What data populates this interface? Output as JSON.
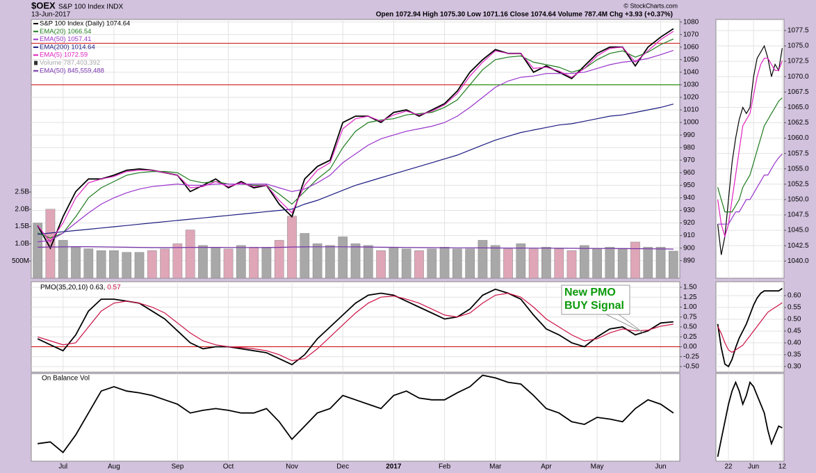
{
  "chart_data": [
    {
      "type": "line",
      "symbol": "$OEX",
      "title": "S&P 100 Index INDX",
      "date": "13-Jun-2017",
      "quote": "Open 1072.94 High 1075.30 Low 1071.16 Close 1074.64 Volume 787.4M Chg +3.93 (+0.37%)",
      "credit": "© StockCharts.com",
      "categories": [
        null,
        null,
        "Jul",
        null,
        null,
        null,
        "Aug",
        null,
        null,
        null,
        null,
        "Sep",
        null,
        null,
        null,
        "Oct",
        null,
        null,
        null,
        null,
        "Nov",
        null,
        null,
        null,
        "Dec",
        null,
        null,
        null,
        "2017",
        null,
        null,
        null,
        "Feb",
        null,
        null,
        null,
        "Mar",
        null,
        null,
        null,
        "Apr",
        null,
        null,
        null,
        "May",
        null,
        null,
        null,
        null,
        "Jun",
        null
      ],
      "series": [
        {
          "name": "S&P 100 Index (Daily) 1074.64",
          "color": "#000000",
          "values": [
            918,
            900,
            925,
            945,
            955,
            955,
            958,
            962,
            963,
            962,
            960,
            958,
            945,
            950,
            955,
            948,
            953,
            948,
            950,
            935,
            925,
            955,
            965,
            970,
            1000,
            1005,
            1005,
            1000,
            1008,
            1010,
            1005,
            1010,
            1015,
            1025,
            1040,
            1050,
            1058,
            1055,
            1055,
            1040,
            1045,
            1040,
            1035,
            1045,
            1055,
            1060,
            1060,
            1045,
            1060,
            1068,
            1074.64
          ]
        },
        {
          "name": "EMA(20) 1066.54",
          "color": "#1d7a1d",
          "values": [
            912,
            908,
            912,
            925,
            940,
            948,
            953,
            958,
            960,
            961,
            961,
            960,
            954,
            952,
            953,
            951,
            951,
            950,
            950,
            943,
            935,
            945,
            955,
            963,
            980,
            993,
            1000,
            1002,
            1003,
            1006,
            1007,
            1008,
            1012,
            1018,
            1030,
            1042,
            1050,
            1052,
            1053,
            1048,
            1046,
            1044,
            1040,
            1043,
            1050,
            1055,
            1057,
            1052,
            1056,
            1062,
            1066.54
          ]
        },
        {
          "name": "EMA(50) 1057.41",
          "color": "#9933cc",
          "values": [
            905,
            906,
            912,
            920,
            928,
            935,
            940,
            944,
            947,
            949,
            950,
            951,
            950,
            950,
            951,
            951,
            951,
            951,
            951,
            948,
            945,
            947,
            952,
            958,
            968,
            975,
            982,
            987,
            990,
            993,
            995,
            997,
            1000,
            1005,
            1012,
            1020,
            1028,
            1033,
            1036,
            1037,
            1039,
            1039,
            1039,
            1040,
            1043,
            1046,
            1048,
            1049,
            1051,
            1054,
            1057.41
          ]
        },
        {
          "name": "EMA(200) 1014.64",
          "color": "#1a1a80",
          "values": [
            911,
            912,
            913,
            914,
            915,
            916,
            917,
            918,
            919,
            920,
            921,
            922,
            923,
            924,
            925,
            926,
            927,
            928,
            929,
            930,
            931,
            935,
            938,
            942,
            946,
            950,
            953,
            956,
            959,
            962,
            965,
            968,
            971,
            974,
            978,
            982,
            986,
            989,
            992,
            994,
            996,
            998,
            999,
            1001,
            1003,
            1005,
            1006,
            1008,
            1010,
            1012,
            1014.64
          ]
        },
        {
          "name": "EMA(5) 1072.59",
          "color": "#e020c0",
          "values": [
            918,
            905,
            920,
            940,
            952,
            955,
            957,
            961,
            962,
            962,
            960,
            958,
            948,
            949,
            953,
            949,
            952,
            949,
            950,
            938,
            928,
            950,
            962,
            968,
            995,
            1003,
            1005,
            1001,
            1006,
            1009,
            1006,
            1009,
            1014,
            1023,
            1037,
            1048,
            1057,
            1055,
            1055,
            1043,
            1044,
            1041,
            1036,
            1043,
            1053,
            1059,
            1060,
            1048,
            1057,
            1066,
            1072.59
          ]
        },
        {
          "name": "Volume 787,403,392",
          "type": "bar",
          "axis": "y2",
          "color": "#a8a8a8",
          "down_color": "#dfa6b8",
          "values": [
            1600,
            2000,
            1100,
            900,
            850,
            800,
            800,
            750,
            750,
            800,
            850,
            1000,
            1400,
            950,
            900,
            850,
            950,
            900,
            900,
            1100,
            1800,
            1300,
            1000,
            950,
            1200,
            1000,
            950,
            800,
            900,
            850,
            800,
            850,
            900,
            850,
            850,
            1100,
            950,
            850,
            1000,
            850,
            900,
            850,
            800,
            950,
            850,
            900,
            850,
            1050,
            900,
            900,
            787.4
          ]
        },
        {
          "name": "EMA(50) 845,559,488",
          "axis": "y2",
          "color": "#7733aa",
          "values": [
            900,
            905,
            910,
            915,
            915,
            910,
            905,
            900,
            895,
            890,
            890,
            890,
            895,
            895,
            895,
            893,
            892,
            891,
            890,
            895,
            905,
            910,
            912,
            912,
            912,
            910,
            905,
            900,
            897,
            893,
            890,
            887,
            885,
            882,
            880,
            880,
            878,
            876,
            874,
            872,
            870,
            868,
            866,
            864,
            862,
            860,
            858,
            856,
            852,
            849,
            845.6
          ]
        }
      ],
      "ylim": [
        876,
        1082
      ],
      "yticks": [
        890,
        900,
        910,
        920,
        930,
        940,
        950,
        960,
        970,
        980,
        990,
        1000,
        1010,
        1020,
        1030,
        1040,
        1050,
        1060,
        1070,
        1080
      ],
      "y2lim": [
        0,
        7500
      ],
      "y2ticks": [
        {
          "value": 500,
          "label": "500M"
        },
        {
          "value": 1000,
          "label": "1.0B"
        },
        {
          "value": 1500,
          "label": "1.5B"
        },
        {
          "value": 2000,
          "label": "2.0B"
        },
        {
          "value": 2500,
          "label": "2.5B"
        }
      ],
      "hlines": [
        {
          "value": 1063,
          "color": "#cc0000"
        },
        {
          "value": 1030,
          "color": "#cc0000"
        },
        {
          "value": 1030,
          "color": "#00a000",
          "from": 34
        }
      ],
      "grid": true
    },
    {
      "type": "line",
      "title": "PMO(35,20,10)",
      "series": [
        {
          "name": "0.63,",
          "color": "#000000",
          "values": [
            0.2,
            0.05,
            -0.1,
            0.3,
            0.9,
            1.2,
            1.2,
            1.15,
            1.1,
            0.9,
            0.7,
            0.4,
            0.1,
            -0.05,
            0,
            0,
            -0.05,
            -0.1,
            -0.15,
            -0.3,
            -0.45,
            -0.2,
            0.2,
            0.5,
            0.8,
            1.1,
            1.3,
            1.35,
            1.3,
            1.15,
            1.0,
            0.85,
            0.7,
            0.75,
            0.95,
            1.3,
            1.45,
            1.35,
            1.2,
            0.8,
            0.45,
            0.3,
            0.1,
            0,
            0.25,
            0.45,
            0.5,
            0.3,
            0.4,
            0.6,
            0.63
          ]
        },
        {
          "name": "0.57",
          "color": "#cc1144",
          "values": [
            0.25,
            0.15,
            0.05,
            0.1,
            0.5,
            0.9,
            1.1,
            1.15,
            1.1,
            1.0,
            0.85,
            0.6,
            0.35,
            0.15,
            0.05,
            0,
            -0.02,
            -0.05,
            -0.1,
            -0.2,
            -0.35,
            -0.3,
            -0.05,
            0.25,
            0.55,
            0.85,
            1.1,
            1.25,
            1.28,
            1.2,
            1.1,
            0.95,
            0.8,
            0.75,
            0.85,
            1.1,
            1.3,
            1.35,
            1.25,
            1.0,
            0.7,
            0.5,
            0.3,
            0.15,
            0.2,
            0.35,
            0.45,
            0.4,
            0.42,
            0.52,
            0.57
          ]
        }
      ],
      "ylim": [
        -0.64,
        1.64
      ],
      "yticks": [
        {
          "value": -0.5,
          "label": "-0.50"
        },
        -0.25,
        {
          "value": 0,
          "label": "0.00"
        },
        0.25,
        {
          "value": 0.5,
          "label": "0.50"
        },
        0.75,
        {
          "value": 1,
          "label": "1.00"
        },
        1.25,
        {
          "value": 1.5,
          "label": "1.50"
        }
      ],
      "hlines": [
        {
          "value": 0,
          "color": "#cc0000"
        }
      ],
      "annotation": {
        "lines": [
          "New PMO",
          "BUY Signal"
        ],
        "color": "#0a9a0a"
      },
      "grid": true
    },
    {
      "type": "line",
      "title": "On Balance Vol",
      "series": [
        {
          "color": "#000000",
          "values": [
            20,
            22,
            10,
            30,
            55,
            80,
            85,
            80,
            78,
            75,
            70,
            65,
            55,
            58,
            60,
            58,
            55,
            55,
            60,
            45,
            25,
            40,
            55,
            60,
            75,
            70,
            65,
            60,
            75,
            80,
            72,
            70,
            70,
            78,
            85,
            98,
            95,
            90,
            88,
            75,
            60,
            55,
            45,
            42,
            50,
            48,
            45,
            60,
            70,
            65,
            55
          ]
        }
      ],
      "ylim": [
        0,
        100
      ]
    },
    {
      "type": "line",
      "categories": [
        null,
        null,
        null,
        "22",
        null,
        null,
        null,
        null,
        null,
        null,
        "Jun",
        null,
        null,
        null,
        null,
        null,
        null,
        null,
        "12"
      ],
      "series": [
        {
          "color": "#000000",
          "values": [
            1046,
            1041,
            1044,
            1050,
            1056,
            1060,
            1063,
            1065,
            1064,
            1065,
            1070,
            1073,
            1074,
            1075,
            1073,
            1070,
            1072,
            1071,
            1074.64
          ]
        },
        {
          "color": "#e020c0",
          "values": [
            1050,
            1046,
            1044,
            1046,
            1050,
            1054,
            1058,
            1062,
            1063,
            1064,
            1067,
            1070,
            1072,
            1073,
            1073,
            1072,
            1071,
            1071,
            1072.59
          ]
        },
        {
          "color": "#1d7a1d",
          "values": [
            1052,
            1050,
            1048,
            1048,
            1048,
            1049,
            1050,
            1052,
            1053,
            1054,
            1056,
            1058,
            1060,
            1062,
            1063,
            1064,
            1065,
            1066,
            1066.54
          ]
        },
        {
          "color": "#9933cc",
          "values": [
            1046,
            1046,
            1046,
            1046,
            1047,
            1048,
            1048,
            1049,
            1050,
            1050,
            1051,
            1052,
            1053,
            1054,
            1054,
            1055,
            1056,
            1056.8,
            1057.41
          ]
        }
      ],
      "ylim": [
        1037.2,
        1079.3
      ],
      "yticks": [
        {
          "value": 1040,
          "label": "1040.0"
        },
        1042.5,
        {
          "value": 1045,
          "label": "1045.0"
        },
        1047.5,
        {
          "value": 1050,
          "label": "1050.0"
        },
        1052.5,
        {
          "value": 1055,
          "label": "1055.0"
        },
        1057.5,
        {
          "value": 1060,
          "label": "1060.0"
        },
        1062.5,
        {
          "value": 1065,
          "label": "1065.0"
        },
        1067.5,
        {
          "value": 1070,
          "label": "1070.0"
        },
        1072.5,
        {
          "value": 1075,
          "label": "1075.0"
        },
        1077.5
      ],
      "grid": true
    },
    {
      "type": "line",
      "series": [
        {
          "color": "#000000",
          "values": [
            0.48,
            0.38,
            0.31,
            0.3,
            0.33,
            0.38,
            0.42,
            0.45,
            0.48,
            0.52,
            0.56,
            0.59,
            0.61,
            0.62,
            0.62,
            0.62,
            0.62,
            0.62,
            0.63
          ]
        },
        {
          "color": "#cc1144",
          "values": [
            0.47,
            0.44,
            0.4,
            0.37,
            0.36,
            0.37,
            0.38,
            0.39,
            0.41,
            0.43,
            0.45,
            0.47,
            0.49,
            0.51,
            0.53,
            0.54,
            0.55,
            0.56,
            0.57
          ]
        }
      ],
      "ylim": [
        0.276,
        0.659
      ],
      "yticks": [
        {
          "value": 0.3,
          "label": "0.30"
        },
        0.35,
        {
          "value": 0.4,
          "label": "0.40"
        },
        0.45,
        {
          "value": 0.5,
          "label": "0.50"
        },
        0.55,
        {
          "value": 0.6,
          "label": "0.60"
        }
      ],
      "grid": true
    },
    {
      "type": "line",
      "series": [
        {
          "color": "#000000",
          "values": [
            5,
            25,
            45,
            65,
            80,
            90,
            80,
            65,
            75,
            90,
            85,
            75,
            65,
            55,
            35,
            20,
            30,
            40,
            38
          ]
        }
      ],
      "ylim": [
        0,
        100
      ]
    }
  ]
}
